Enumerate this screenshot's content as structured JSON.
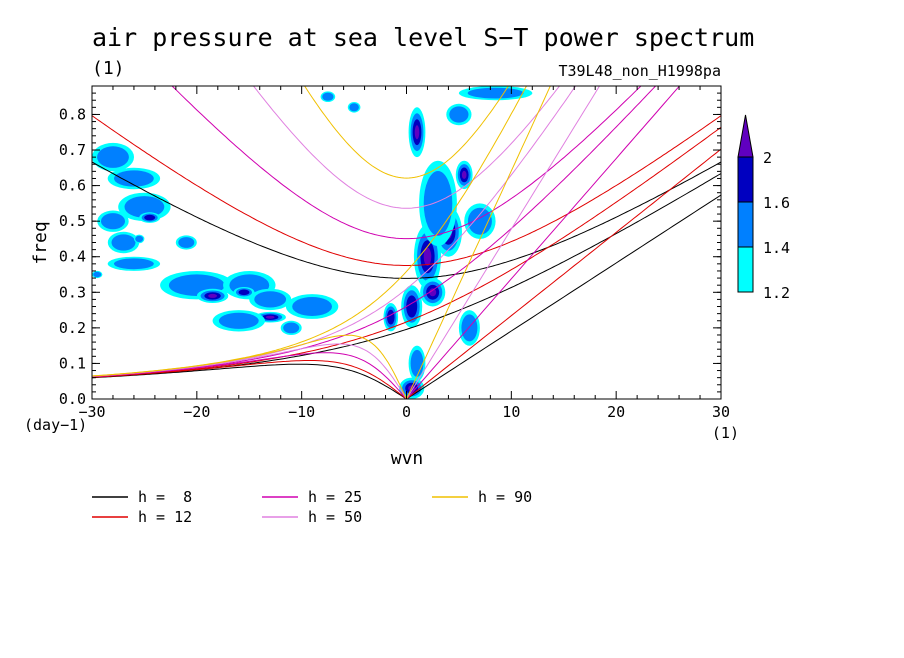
{
  "chart_data": {
    "type": "heatmap",
    "title": "air pressure at sea level S−T power spectrum",
    "title_units": "(1)",
    "subtitle_right": "T39L48_non_H1998pa",
    "xlabel": "wvn",
    "xunits": "(1)",
    "ylabel": "freq",
    "yunits": "(day−1)",
    "xlim": [
      -30,
      30
    ],
    "ylim": [
      0,
      0.88
    ],
    "xticks": [
      -30,
      -20,
      -10,
      0,
      10,
      20,
      30
    ],
    "xtick_labels": [
      "−30",
      "−20",
      "−10",
      "0",
      "10",
      "20",
      "30"
    ],
    "yticks": [
      0.0,
      0.1,
      0.2,
      0.3,
      0.4,
      0.5,
      0.6,
      0.7,
      0.8
    ],
    "ytick_labels": [
      "0.0",
      "0.1",
      "0.2",
      "0.3",
      "0.4",
      "0.5",
      "0.6",
      "0.7",
      "0.8"
    ],
    "colorbar": {
      "levels": [
        1.2,
        1.4,
        1.6,
        2
      ],
      "labels": [
        "1.2",
        "1.4",
        "1.6",
        "2"
      ],
      "colors": [
        "#00ffff",
        "#0080ff",
        "#0000c0",
        "#6000c0"
      ]
    },
    "contour_blobs": [
      {
        "x": 0.5,
        "y": 0.03,
        "rx": 1.2,
        "ry": 0.03,
        "level": 3
      },
      {
        "x": 1.0,
        "y": 0.1,
        "rx": 0.8,
        "ry": 0.05,
        "level": 1
      },
      {
        "x": -1.5,
        "y": 0.23,
        "rx": 0.7,
        "ry": 0.04,
        "level": 2
      },
      {
        "x": 0.5,
        "y": 0.26,
        "rx": 1.0,
        "ry": 0.06,
        "level": 2
      },
      {
        "x": 1.0,
        "y": 0.75,
        "rx": 0.8,
        "ry": 0.07,
        "level": 3
      },
      {
        "x": 2.0,
        "y": 0.4,
        "rx": 1.3,
        "ry": 0.09,
        "level": 3
      },
      {
        "x": 4.0,
        "y": 0.47,
        "rx": 1.3,
        "ry": 0.07,
        "level": 3
      },
      {
        "x": 5.5,
        "y": 0.63,
        "rx": 0.8,
        "ry": 0.04,
        "level": 3
      },
      {
        "x": 2.5,
        "y": 0.3,
        "rx": 1.2,
        "ry": 0.04,
        "level": 3
      },
      {
        "x": 3.0,
        "y": 0.55,
        "rx": 1.8,
        "ry": 0.12,
        "level": 1
      },
      {
        "x": 6.0,
        "y": 0.2,
        "rx": 1.0,
        "ry": 0.05,
        "level": 1
      },
      {
        "x": 7.0,
        "y": 0.5,
        "rx": 1.5,
        "ry": 0.05,
        "level": 1
      },
      {
        "x": 5.0,
        "y": 0.8,
        "rx": 1.2,
        "ry": 0.03,
        "level": 1
      },
      {
        "x": 8.5,
        "y": 0.86,
        "rx": 3.5,
        "ry": 0.02,
        "level": 1
      },
      {
        "x": -28.0,
        "y": 0.68,
        "rx": 2.0,
        "ry": 0.04,
        "level": 1
      },
      {
        "x": -26.0,
        "y": 0.62,
        "rx": 2.5,
        "ry": 0.03,
        "level": 1
      },
      {
        "x": -25.0,
        "y": 0.54,
        "rx": 2.5,
        "ry": 0.04,
        "level": 1
      },
      {
        "x": -28.0,
        "y": 0.5,
        "rx": 1.5,
        "ry": 0.03,
        "level": 1
      },
      {
        "x": -24.5,
        "y": 0.51,
        "rx": 1.0,
        "ry": 0.015,
        "level": 2
      },
      {
        "x": -27.0,
        "y": 0.44,
        "rx": 1.5,
        "ry": 0.03,
        "level": 1
      },
      {
        "x": -26.0,
        "y": 0.38,
        "rx": 2.5,
        "ry": 0.02,
        "level": 1
      },
      {
        "x": -21.0,
        "y": 0.44,
        "rx": 1.0,
        "ry": 0.02,
        "level": 1
      },
      {
        "x": -20.0,
        "y": 0.32,
        "rx": 3.5,
        "ry": 0.04,
        "level": 1
      },
      {
        "x": -18.5,
        "y": 0.29,
        "rx": 1.5,
        "ry": 0.02,
        "level": 3
      },
      {
        "x": -15.0,
        "y": 0.32,
        "rx": 2.5,
        "ry": 0.04,
        "level": 1
      },
      {
        "x": -15.5,
        "y": 0.3,
        "rx": 1.0,
        "ry": 0.015,
        "level": 2
      },
      {
        "x": -13.0,
        "y": 0.28,
        "rx": 2.0,
        "ry": 0.03,
        "level": 1
      },
      {
        "x": -13.0,
        "y": 0.23,
        "rx": 1.5,
        "ry": 0.015,
        "level": 3
      },
      {
        "x": -16.0,
        "y": 0.22,
        "rx": 2.5,
        "ry": 0.03,
        "level": 1
      },
      {
        "x": -9.0,
        "y": 0.26,
        "rx": 2.5,
        "ry": 0.035,
        "level": 1
      },
      {
        "x": -11.0,
        "y": 0.2,
        "rx": 1.0,
        "ry": 0.02,
        "level": 1
      },
      {
        "x": -7.5,
        "y": 0.85,
        "rx": 0.7,
        "ry": 0.015,
        "level": 1
      },
      {
        "x": -5.0,
        "y": 0.82,
        "rx": 0.6,
        "ry": 0.015,
        "level": 1
      },
      {
        "x": -25.5,
        "y": 0.45,
        "rx": 0.5,
        "ry": 0.012,
        "level": 1
      },
      {
        "x": -29.5,
        "y": 0.35,
        "rx": 0.5,
        "ry": 0.01,
        "level": 1
      }
    ],
    "series": [
      {
        "name": "h =  8",
        "h": 8,
        "color": "#000000"
      },
      {
        "name": "h = 12",
        "h": 12,
        "color": "#e00000"
      },
      {
        "name": "h = 25",
        "h": 25,
        "color": "#d000b0"
      },
      {
        "name": "h = 50",
        "h": 50,
        "color": "#e080e0"
      },
      {
        "name": "h = 90",
        "h": 90,
        "color": "#f0c000"
      }
    ],
    "legend_position": "bottom-left"
  }
}
